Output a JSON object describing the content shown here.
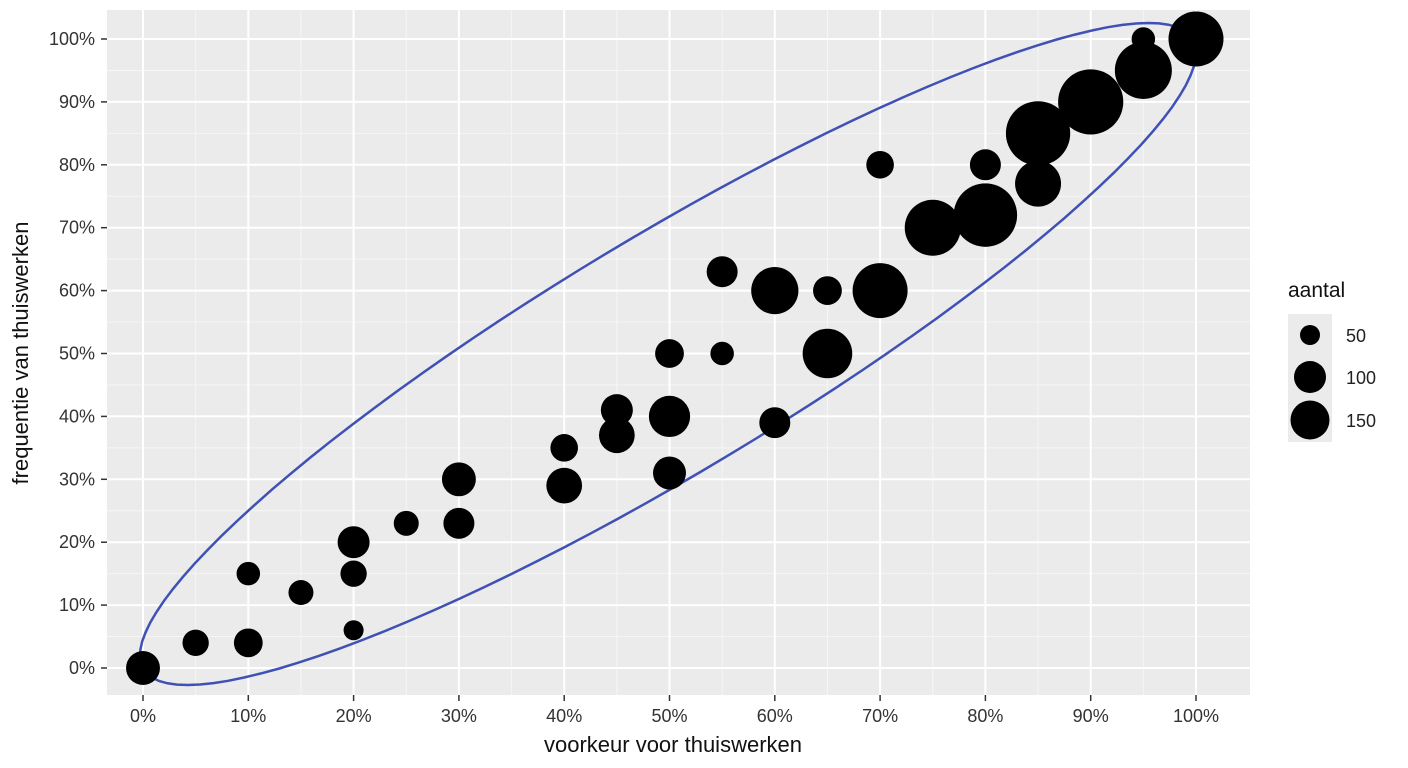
{
  "chart_data": {
    "type": "scatter",
    "subtype": "bubble",
    "title": "",
    "xlabel": "voorkeur voor thuiswerken",
    "ylabel": "frequentie van thuiswerken",
    "xlim": [
      0,
      100
    ],
    "ylim": [
      0,
      100
    ],
    "x_ticks": [
      "0%",
      "10%",
      "20%",
      "30%",
      "40%",
      "50%",
      "60%",
      "70%",
      "80%",
      "90%",
      "100%"
    ],
    "y_ticks": [
      "0%",
      "10%",
      "20%",
      "30%",
      "40%",
      "50%",
      "60%",
      "70%",
      "80%",
      "90%",
      "100%"
    ],
    "grid": true,
    "background": "#ebebeb",
    "point_color": "#000000",
    "legend": {
      "title": "aantal",
      "position": "right",
      "entries": [
        {
          "label": "50",
          "size": 50
        },
        {
          "label": "100",
          "size": 100
        },
        {
          "label": "150",
          "size": 150
        }
      ]
    },
    "annotation": {
      "type": "ellipse",
      "color": "#3f51b5",
      "description": "confidence ellipse around the positive trend"
    },
    "points": [
      {
        "x": 0,
        "y": 0,
        "aantal": 70
      },
      {
        "x": 5,
        "y": 4,
        "aantal": 35
      },
      {
        "x": 10,
        "y": 4,
        "aantal": 45
      },
      {
        "x": 10,
        "y": 15,
        "aantal": 25
      },
      {
        "x": 15,
        "y": 12,
        "aantal": 30
      },
      {
        "x": 20,
        "y": 6,
        "aantal": 15
      },
      {
        "x": 20,
        "y": 15,
        "aantal": 35
      },
      {
        "x": 20,
        "y": 20,
        "aantal": 60
      },
      {
        "x": 25,
        "y": 23,
        "aantal": 30
      },
      {
        "x": 30,
        "y": 23,
        "aantal": 55
      },
      {
        "x": 30,
        "y": 30,
        "aantal": 70
      },
      {
        "x": 40,
        "y": 29,
        "aantal": 80
      },
      {
        "x": 40,
        "y": 35,
        "aantal": 40
      },
      {
        "x": 45,
        "y": 37,
        "aantal": 80
      },
      {
        "x": 45,
        "y": 41,
        "aantal": 60
      },
      {
        "x": 50,
        "y": 31,
        "aantal": 65
      },
      {
        "x": 50,
        "y": 40,
        "aantal": 115
      },
      {
        "x": 50,
        "y": 50,
        "aantal": 45
      },
      {
        "x": 55,
        "y": 50,
        "aantal": 25
      },
      {
        "x": 55,
        "y": 63,
        "aantal": 55
      },
      {
        "x": 60,
        "y": 39,
        "aantal": 55
      },
      {
        "x": 60,
        "y": 60,
        "aantal": 160
      },
      {
        "x": 65,
        "y": 50,
        "aantal": 180
      },
      {
        "x": 65,
        "y": 60,
        "aantal": 45
      },
      {
        "x": 70,
        "y": 60,
        "aantal": 230
      },
      {
        "x": 70,
        "y": 80,
        "aantal": 40
      },
      {
        "x": 75,
        "y": 70,
        "aantal": 240
      },
      {
        "x": 80,
        "y": 72,
        "aantal": 320
      },
      {
        "x": 80,
        "y": 80,
        "aantal": 55
      },
      {
        "x": 85,
        "y": 77,
        "aantal": 150
      },
      {
        "x": 85,
        "y": 85,
        "aantal": 330
      },
      {
        "x": 90,
        "y": 90,
        "aantal": 340
      },
      {
        "x": 95,
        "y": 95,
        "aantal": 250
      },
      {
        "x": 95,
        "y": 100,
        "aantal": 25
      },
      {
        "x": 100,
        "y": 100,
        "aantal": 230
      }
    ]
  }
}
